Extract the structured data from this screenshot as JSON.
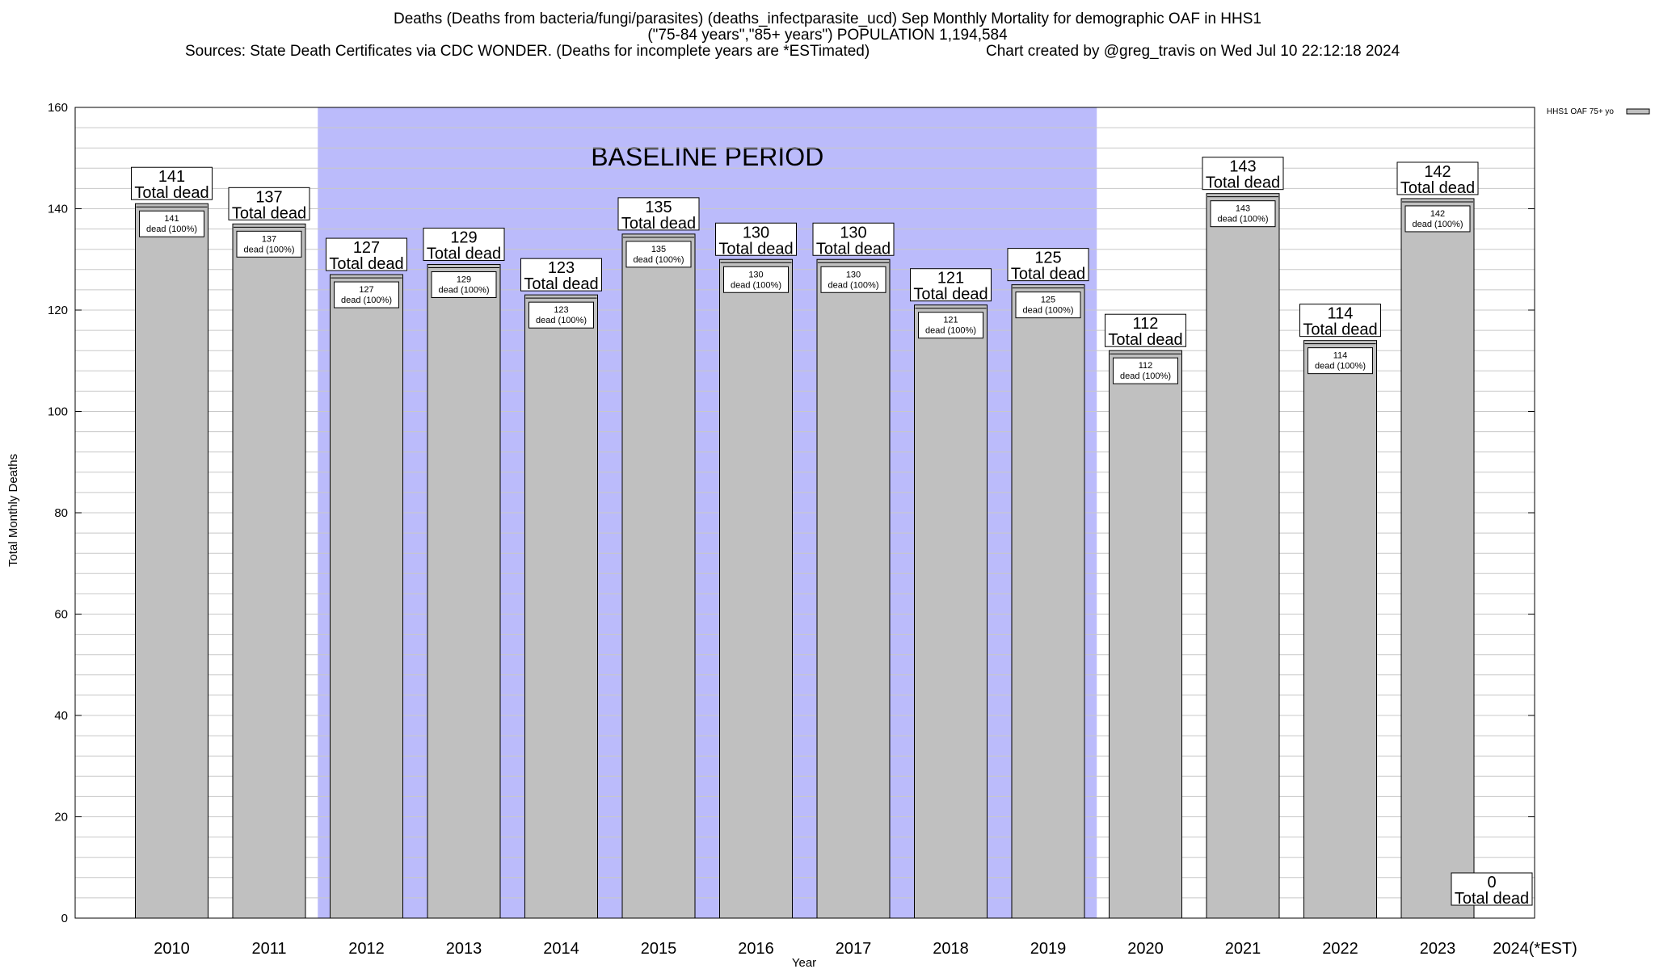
{
  "title": {
    "line1": "Deaths (Deaths from bacteria/fungi/parasites) (deaths_infectparasite_ucd) Sep Monthly Mortality for demographic OAF in HHS1",
    "line2": "(\"75-84 years\",\"85+ years\") POPULATION 1,194,584",
    "sources": "Sources: State Death Certificates via CDC WONDER. (Deaths for incomplete years are *ESTimated)",
    "credit": "Chart created by @greg_travis on Wed Jul 10 22:12:18 2024"
  },
  "colors": {
    "bar": "#c0c0c0",
    "baseline_band": "#bbbbfb",
    "grid": "#c8c8c8"
  },
  "chart_data": {
    "type": "bar",
    "categories": [
      "2010",
      "2011",
      "2012",
      "2013",
      "2014",
      "2015",
      "2016",
      "2017",
      "2018",
      "2019",
      "2020",
      "2021",
      "2022",
      "2023",
      "2024(*EST)"
    ],
    "series": [
      {
        "name": "HHS1 OAF 75+ yo",
        "values": [
          141,
          137,
          127,
          129,
          123,
          135,
          130,
          130,
          121,
          125,
          112,
          143,
          114,
          142,
          0
        ]
      }
    ],
    "total_label": "Total dead",
    "inner_label": "dead (100%)",
    "xlabel": "Year",
    "ylabel": "Total Monthly Deaths",
    "ylim": [
      0,
      160
    ],
    "yticks": [
      0,
      20,
      40,
      60,
      80,
      100,
      120,
      140,
      160
    ],
    "minor_grid_step": 4,
    "grid": true,
    "baseline_period": {
      "label": "BASELINE PERIOD",
      "from": "2012",
      "to": "2019"
    },
    "legend_position": "top-right"
  }
}
